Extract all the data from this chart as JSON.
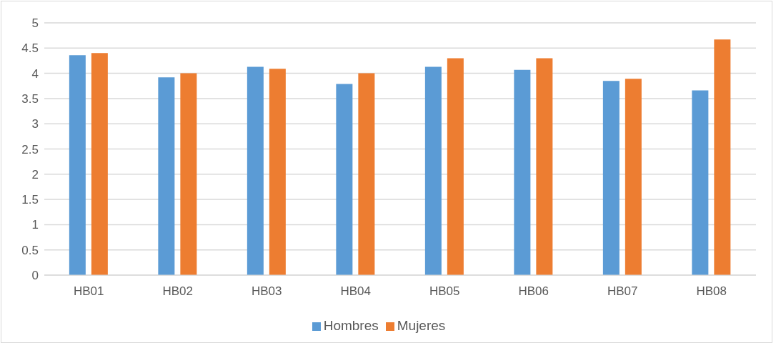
{
  "chart_data": {
    "type": "bar",
    "categories": [
      "HB01",
      "HB02",
      "HB03",
      "HB04",
      "HB05",
      "HB06",
      "HB07",
      "HB08"
    ],
    "series": [
      {
        "name": "Hombres",
        "color": "#5b9bd5",
        "values": [
          4.36,
          3.92,
          4.13,
          3.79,
          4.13,
          4.07,
          3.85,
          3.66
        ]
      },
      {
        "name": "Mujeres",
        "color": "#ed7d31",
        "values": [
          4.4,
          4.0,
          4.09,
          4.0,
          4.3,
          4.3,
          3.89,
          4.67
        ]
      }
    ],
    "ylim": [
      0,
      5
    ],
    "yticks": [
      0,
      0.5,
      1,
      1.5,
      2,
      2.5,
      3,
      3.5,
      4,
      4.5,
      5
    ],
    "grid": "y",
    "legend": "bottom"
  }
}
